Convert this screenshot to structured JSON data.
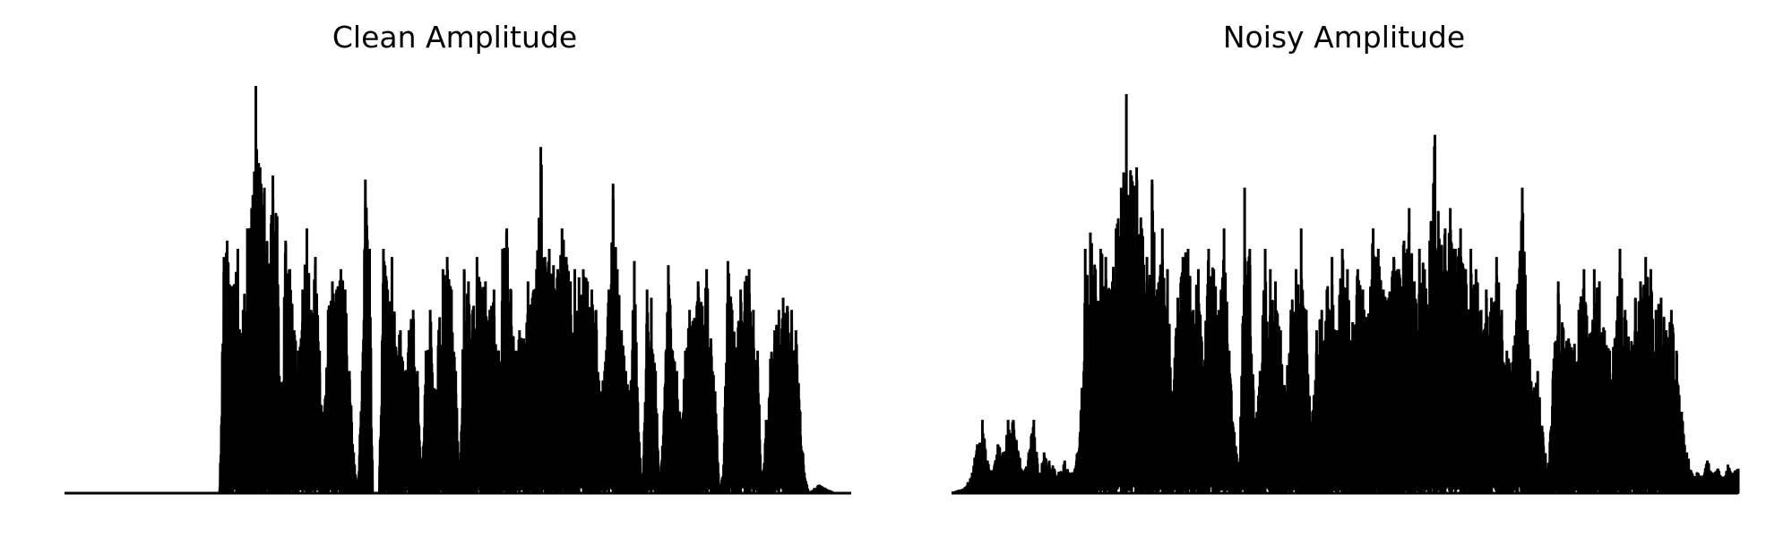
{
  "chart_data": [
    {
      "type": "line",
      "title": "Clean Amplitude",
      "xlabel": "",
      "ylabel": "",
      "axes_visible": false,
      "grid": false,
      "color": "#000000",
      "ylim": [
        0,
        1
      ],
      "envelope": [
        [
          0.0,
          0.0
        ],
        [
          0.14,
          0.0
        ],
        [
          0.146,
          0.0
        ],
        [
          0.15,
          0.58
        ],
        [
          0.153,
          0.62
        ],
        [
          0.158,
          0.5
        ],
        [
          0.163,
          0.6
        ],
        [
          0.168,
          0.45
        ],
        [
          0.172,
          0.65
        ],
        [
          0.176,
          0.7
        ],
        [
          0.18,
          1.0
        ],
        [
          0.184,
          0.8
        ],
        [
          0.188,
          0.75
        ],
        [
          0.192,
          0.55
        ],
        [
          0.196,
          0.78
        ],
        [
          0.2,
          0.68
        ],
        [
          0.204,
          0.25
        ],
        [
          0.208,
          0.62
        ],
        [
          0.212,
          0.55
        ],
        [
          0.216,
          0.4
        ],
        [
          0.22,
          0.35
        ],
        [
          0.224,
          0.5
        ],
        [
          0.228,
          0.65
        ],
        [
          0.232,
          0.45
        ],
        [
          0.236,
          0.58
        ],
        [
          0.24,
          0.35
        ],
        [
          0.244,
          0.2
        ],
        [
          0.248,
          0.45
        ],
        [
          0.252,
          0.52
        ],
        [
          0.256,
          0.5
        ],
        [
          0.26,
          0.55
        ],
        [
          0.264,
          0.5
        ],
        [
          0.268,
          0.3
        ],
        [
          0.272,
          0.1
        ],
        [
          0.276,
          0.0
        ],
        [
          0.28,
          0.3
        ],
        [
          0.283,
          0.77
        ],
        [
          0.287,
          0.6
        ],
        [
          0.29,
          0.0
        ],
        [
          0.296,
          0.0
        ],
        [
          0.3,
          0.6
        ],
        [
          0.304,
          0.5
        ],
        [
          0.308,
          0.58
        ],
        [
          0.312,
          0.35
        ],
        [
          0.316,
          0.4
        ],
        [
          0.32,
          0.3
        ],
        [
          0.324,
          0.4
        ],
        [
          0.328,
          0.45
        ],
        [
          0.332,
          0.3
        ],
        [
          0.336,
          0.0
        ],
        [
          0.34,
          0.35
        ],
        [
          0.344,
          0.45
        ],
        [
          0.348,
          0.25
        ],
        [
          0.352,
          0.4
        ],
        [
          0.356,
          0.55
        ],
        [
          0.36,
          0.58
        ],
        [
          0.364,
          0.5
        ],
        [
          0.368,
          0.3
        ],
        [
          0.372,
          0.0
        ],
        [
          0.376,
          0.55
        ],
        [
          0.38,
          0.52
        ],
        [
          0.384,
          0.45
        ],
        [
          0.388,
          0.58
        ],
        [
          0.392,
          0.5
        ],
        [
          0.396,
          0.52
        ],
        [
          0.4,
          0.45
        ],
        [
          0.404,
          0.5
        ],
        [
          0.408,
          0.35
        ],
        [
          0.412,
          0.6
        ],
        [
          0.416,
          0.65
        ],
        [
          0.42,
          0.5
        ],
        [
          0.424,
          0.35
        ],
        [
          0.428,
          0.4
        ],
        [
          0.432,
          0.38
        ],
        [
          0.436,
          0.52
        ],
        [
          0.44,
          0.48
        ],
        [
          0.444,
          0.55
        ],
        [
          0.448,
          0.85
        ],
        [
          0.452,
          0.58
        ],
        [
          0.456,
          0.6
        ],
        [
          0.46,
          0.56
        ],
        [
          0.464,
          0.55
        ],
        [
          0.468,
          0.65
        ],
        [
          0.472,
          0.58
        ],
        [
          0.476,
          0.52
        ],
        [
          0.48,
          0.55
        ],
        [
          0.484,
          0.53
        ],
        [
          0.488,
          0.55
        ],
        [
          0.492,
          0.52
        ],
        [
          0.496,
          0.5
        ],
        [
          0.5,
          0.45
        ],
        [
          0.504,
          0.25
        ],
        [
          0.508,
          0.3
        ],
        [
          0.512,
          0.5
        ],
        [
          0.516,
          0.76
        ],
        [
          0.52,
          0.55
        ],
        [
          0.524,
          0.4
        ],
        [
          0.528,
          0.3
        ],
        [
          0.532,
          0.25
        ],
        [
          0.536,
          0.57
        ],
        [
          0.54,
          0.15
        ],
        [
          0.544,
          0.0
        ],
        [
          0.548,
          0.5
        ],
        [
          0.552,
          0.48
        ],
        [
          0.556,
          0.3
        ],
        [
          0.56,
          0.0
        ],
        [
          0.564,
          0.2
        ],
        [
          0.568,
          0.56
        ],
        [
          0.572,
          0.35
        ],
        [
          0.576,
          0.3
        ],
        [
          0.58,
          0.15
        ],
        [
          0.584,
          0.35
        ],
        [
          0.588,
          0.45
        ],
        [
          0.592,
          0.42
        ],
        [
          0.596,
          0.52
        ],
        [
          0.6,
          0.46
        ],
        [
          0.604,
          0.55
        ],
        [
          0.608,
          0.38
        ],
        [
          0.612,
          0.25
        ],
        [
          0.616,
          0.0
        ],
        [
          0.62,
          0.07
        ],
        [
          0.624,
          0.57
        ],
        [
          0.628,
          0.45
        ],
        [
          0.632,
          0.35
        ],
        [
          0.636,
          0.5
        ],
        [
          0.64,
          0.52
        ],
        [
          0.644,
          0.55
        ],
        [
          0.648,
          0.45
        ],
        [
          0.652,
          0.35
        ],
        [
          0.656,
          0.0
        ],
        [
          0.66,
          0.18
        ],
        [
          0.664,
          0.33
        ],
        [
          0.668,
          0.4
        ],
        [
          0.672,
          0.45
        ],
        [
          0.676,
          0.48
        ],
        [
          0.68,
          0.46
        ],
        [
          0.684,
          0.45
        ],
        [
          0.688,
          0.4
        ],
        [
          0.692,
          0.2
        ],
        [
          0.696,
          0.05
        ],
        [
          0.7,
          0.0
        ],
        [
          0.71,
          0.02
        ],
        [
          0.716,
          0.01
        ],
        [
          0.724,
          0.0
        ],
        [
          0.74,
          0.0
        ]
      ]
    },
    {
      "type": "line",
      "title": "Noisy Amplitude",
      "xlabel": "",
      "ylabel": "",
      "axes_visible": false,
      "grid": false,
      "color": "#000000",
      "ylim": [
        0,
        1
      ],
      "envelope": [
        [
          0.0,
          0.0
        ],
        [
          0.01,
          0.01
        ],
        [
          0.016,
          0.05
        ],
        [
          0.02,
          0.12
        ],
        [
          0.024,
          0.18
        ],
        [
          0.028,
          0.08
        ],
        [
          0.032,
          0.05
        ],
        [
          0.036,
          0.12
        ],
        [
          0.04,
          0.1
        ],
        [
          0.044,
          0.18
        ],
        [
          0.048,
          0.18
        ],
        [
          0.052,
          0.1
        ],
        [
          0.056,
          0.05
        ],
        [
          0.06,
          0.1
        ],
        [
          0.064,
          0.18
        ],
        [
          0.068,
          0.05
        ],
        [
          0.072,
          0.1
        ],
        [
          0.076,
          0.08
        ],
        [
          0.08,
          0.06
        ],
        [
          0.084,
          0.05
        ],
        [
          0.088,
          0.08
        ],
        [
          0.092,
          0.05
        ],
        [
          0.096,
          0.06
        ],
        [
          0.1,
          0.15
        ],
        [
          0.104,
          0.6
        ],
        [
          0.108,
          0.64
        ],
        [
          0.112,
          0.55
        ],
        [
          0.116,
          0.6
        ],
        [
          0.12,
          0.58
        ],
        [
          0.124,
          0.5
        ],
        [
          0.128,
          0.65
        ],
        [
          0.132,
          0.75
        ],
        [
          0.136,
          0.98
        ],
        [
          0.14,
          0.78
        ],
        [
          0.144,
          0.8
        ],
        [
          0.148,
          0.65
        ],
        [
          0.152,
          0.58
        ],
        [
          0.156,
          0.77
        ],
        [
          0.16,
          0.5
        ],
        [
          0.164,
          0.65
        ],
        [
          0.168,
          0.55
        ],
        [
          0.172,
          0.25
        ],
        [
          0.176,
          0.48
        ],
        [
          0.18,
          0.58
        ],
        [
          0.184,
          0.6
        ],
        [
          0.188,
          0.45
        ],
        [
          0.192,
          0.55
        ],
        [
          0.196,
          0.3
        ],
        [
          0.2,
          0.6
        ],
        [
          0.204,
          0.55
        ],
        [
          0.208,
          0.45
        ],
        [
          0.212,
          0.65
        ],
        [
          0.216,
          0.35
        ],
        [
          0.22,
          0.15
        ],
        [
          0.224,
          0.05
        ],
        [
          0.228,
          0.75
        ],
        [
          0.232,
          0.6
        ],
        [
          0.236,
          0.15
        ],
        [
          0.24,
          0.3
        ],
        [
          0.244,
          0.6
        ],
        [
          0.248,
          0.55
        ],
        [
          0.252,
          0.52
        ],
        [
          0.256,
          0.4
        ],
        [
          0.26,
          0.25
        ],
        [
          0.264,
          0.45
        ],
        [
          0.268,
          0.55
        ],
        [
          0.272,
          0.65
        ],
        [
          0.276,
          0.45
        ],
        [
          0.28,
          0.15
        ],
        [
          0.284,
          0.4
        ],
        [
          0.288,
          0.45
        ],
        [
          0.292,
          0.5
        ],
        [
          0.296,
          0.58
        ],
        [
          0.3,
          0.4
        ],
        [
          0.304,
          0.6
        ],
        [
          0.308,
          0.55
        ],
        [
          0.312,
          0.42
        ],
        [
          0.316,
          0.55
        ],
        [
          0.32,
          0.5
        ],
        [
          0.324,
          0.42
        ],
        [
          0.328,
          0.65
        ],
        [
          0.332,
          0.6
        ],
        [
          0.336,
          0.5
        ],
        [
          0.34,
          0.48
        ],
        [
          0.344,
          0.58
        ],
        [
          0.348,
          0.55
        ],
        [
          0.352,
          0.62
        ],
        [
          0.356,
          0.7
        ],
        [
          0.36,
          0.52
        ],
        [
          0.364,
          0.6
        ],
        [
          0.368,
          0.55
        ],
        [
          0.372,
          0.62
        ],
        [
          0.376,
          0.88
        ],
        [
          0.38,
          0.6
        ],
        [
          0.384,
          0.65
        ],
        [
          0.388,
          0.7
        ],
        [
          0.392,
          0.6
        ],
        [
          0.396,
          0.65
        ],
        [
          0.4,
          0.55
        ],
        [
          0.404,
          0.6
        ],
        [
          0.408,
          0.55
        ],
        [
          0.412,
          0.45
        ],
        [
          0.416,
          0.5
        ],
        [
          0.42,
          0.48
        ],
        [
          0.424,
          0.58
        ],
        [
          0.428,
          0.45
        ],
        [
          0.432,
          0.35
        ],
        [
          0.436,
          0.3
        ],
        [
          0.44,
          0.5
        ],
        [
          0.444,
          0.75
        ],
        [
          0.448,
          0.4
        ],
        [
          0.452,
          0.25
        ],
        [
          0.456,
          0.3
        ],
        [
          0.46,
          0.15
        ],
        [
          0.464,
          0.05
        ],
        [
          0.468,
          0.3
        ],
        [
          0.472,
          0.52
        ],
        [
          0.476,
          0.4
        ],
        [
          0.48,
          0.38
        ],
        [
          0.484,
          0.35
        ],
        [
          0.488,
          0.45
        ],
        [
          0.492,
          0.55
        ],
        [
          0.496,
          0.38
        ],
        [
          0.5,
          0.55
        ],
        [
          0.504,
          0.52
        ],
        [
          0.508,
          0.4
        ],
        [
          0.512,
          0.35
        ],
        [
          0.516,
          0.38
        ],
        [
          0.52,
          0.6
        ],
        [
          0.524,
          0.45
        ],
        [
          0.528,
          0.35
        ],
        [
          0.532,
          0.48
        ],
        [
          0.536,
          0.52
        ],
        [
          0.54,
          0.58
        ],
        [
          0.544,
          0.55
        ],
        [
          0.548,
          0.45
        ],
        [
          0.552,
          0.48
        ],
        [
          0.556,
          0.4
        ],
        [
          0.56,
          0.45
        ],
        [
          0.564,
          0.35
        ],
        [
          0.568,
          0.2
        ],
        [
          0.572,
          0.1
        ],
        [
          0.576,
          0.05
        ],
        [
          0.58,
          0.05
        ],
        [
          0.584,
          0.04
        ],
        [
          0.588,
          0.08
        ],
        [
          0.592,
          0.05
        ],
        [
          0.596,
          0.06
        ],
        [
          0.6,
          0.04
        ],
        [
          0.604,
          0.07
        ],
        [
          0.608,
          0.05
        ],
        [
          0.612,
          0.06
        ]
      ]
    }
  ]
}
